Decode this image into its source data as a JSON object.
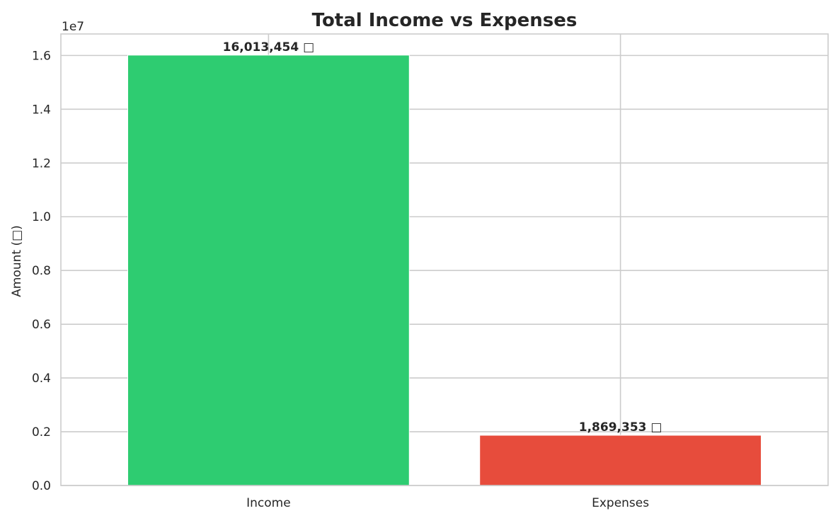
{
  "chart_data": {
    "type": "bar",
    "title": "Total Income vs Expenses",
    "categories": [
      "Income",
      "Expenses"
    ],
    "values": [
      16013454,
      1869353
    ],
    "value_labels": [
      "16,013,454 □",
      "1,869,353 □"
    ],
    "colors": [
      "#2ecc71",
      "#e74c3c"
    ],
    "xlabel": "",
    "ylabel": "Amount (□)",
    "ylim": [
      0,
      16800000
    ],
    "yticks": [
      0,
      2000000,
      4000000,
      6000000,
      8000000,
      10000000,
      12000000,
      14000000,
      16000000
    ],
    "ytick_labels": [
      "0.0",
      "0.2",
      "0.4",
      "0.6",
      "0.8",
      "1.0",
      "1.2",
      "1.4",
      "1.6"
    ],
    "offset_text": "1e7",
    "grid": true,
    "legend": "none"
  }
}
